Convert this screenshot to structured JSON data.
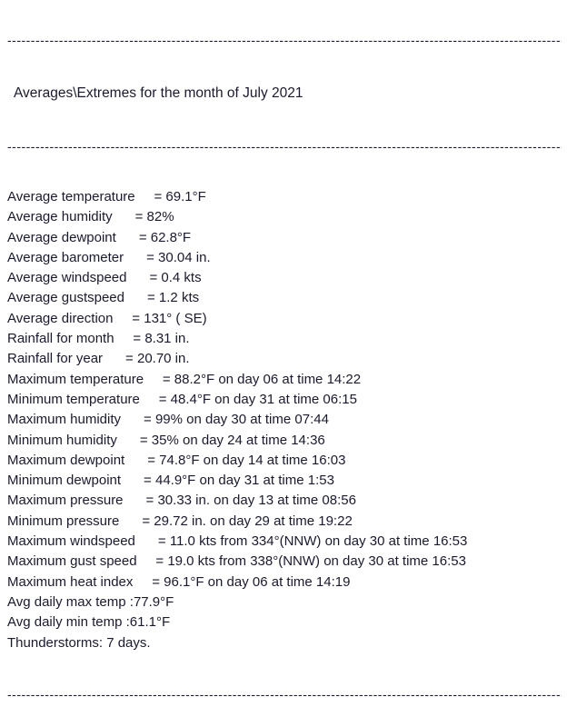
{
  "colors": {
    "text": "#1a1a2e",
    "background": "#ffffff"
  },
  "report": {
    "separator": "------------------------------------------------------------------------------------------------------------------------------------------------",
    "title": "Averages\\Extremes for the month of July 2021",
    "lines": [
      "Average temperature     = 69.1°F",
      "Average humidity      = 82%",
      "Average dewpoint      = 62.8°F",
      "Average barometer      = 30.04 in.",
      "Average windspeed      = 0.4 kts",
      "Average gustspeed      = 1.2 kts",
      "Average direction     = 131° ( SE)",
      "Rainfall for month     = 8.31 in.",
      "Rainfall for year      = 20.70 in.",
      "Maximum temperature     = 88.2°F on day 06 at time 14:22",
      "Minimum temperature     = 48.4°F on day 31 at time 06:15",
      "Maximum humidity      = 99% on day 30 at time 07:44",
      "Minimum humidity      = 35% on day 24 at time 14:36",
      "Maximum dewpoint      = 74.8°F on day 14 at time 16:03",
      "Minimum dewpoint      = 44.9°F on day 31 at time 1:53",
      "Maximum pressure      = 30.33 in. on day 13 at time 08:56",
      "Minimum pressure      = 29.72 in. on day 29 at time 19:22",
      "Maximum windspeed      = 11.0 kts from 334°(NNW) on day 30 at time 16:53",
      "Maximum gust speed     = 19.0 kts from 338°(NNW) on day 30 at time 16:53",
      "Maximum heat index     = 96.1°F on day 06 at time 14:19",
      "Avg daily max temp :77.9°F",
      "Avg daily min temp :61.1°F",
      "Thunderstorms: 7 days."
    ]
  }
}
